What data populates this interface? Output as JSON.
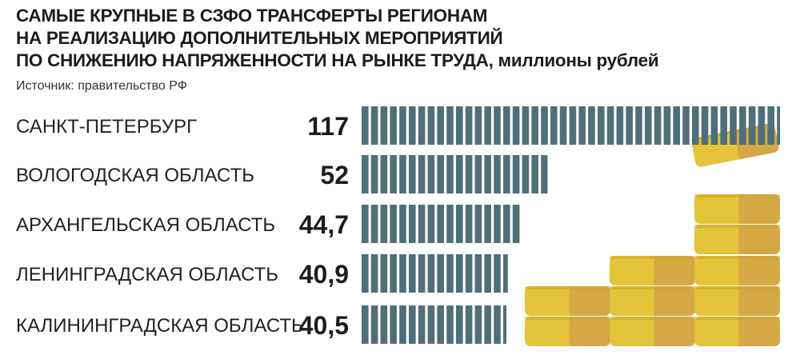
{
  "header": {
    "title_lines": [
      "САМЫЕ КРУПНЫЕ В СЗФО ТРАНСФЕРТЫ РЕГИОНАМ",
      "НА РЕАЛИЗАЦИЮ ДОПОЛНИТЕЛЬНЫХ МЕРОПРИЯТИЙ",
      "ПО СНИЖЕНИЮ НАПРЯЖЕННОСТИ НА РЫНКЕ ТРУДА,"
    ],
    "unit": "миллионы рублей",
    "source": "Источник: правительство РФ"
  },
  "colors": {
    "bar": "#4f6f7a",
    "coin_light": "#e3c43a",
    "coin_dark": "#d4a845",
    "coin_edge": "#c9a52c"
  },
  "decoration": {
    "icon": "coin-stack-icon"
  },
  "chart_data": {
    "type": "bar",
    "orientation": "horizontal",
    "categories": [
      "САНКТ-ПЕТЕРБУРГ",
      "ВОЛОГОДСКАЯ ОБЛАСТЬ",
      "АРХАНГЕЛЬСКАЯ ОБЛАСТЬ",
      "ЛЕНИНГРАДСКАЯ ОБЛАСТЬ",
      "КАЛИНИНГРАДСКАЯ ОБЛАСТЬ"
    ],
    "values": [
      117,
      52,
      44.7,
      40.9,
      40.5
    ],
    "value_labels": [
      "117",
      "52",
      "44,7",
      "40,9",
      "40,5"
    ],
    "title": "САМЫЕ КРУПНЫЕ В СЗФО ТРАНСФЕРТЫ РЕГИОНАМ НА РЕАЛИЗАЦИЮ ДОПОЛНИТЕЛЬНЫХ МЕРОПРИЯТИЙ ПО СНИЖЕНИЮ НАПРЯЖЕННОСТИ НА РЫНКЕ ТРУДА, миллионы рублей",
    "xlabel": "",
    "ylabel": "",
    "xlim": [
      0,
      117
    ],
    "grid": false,
    "legend": "none"
  }
}
